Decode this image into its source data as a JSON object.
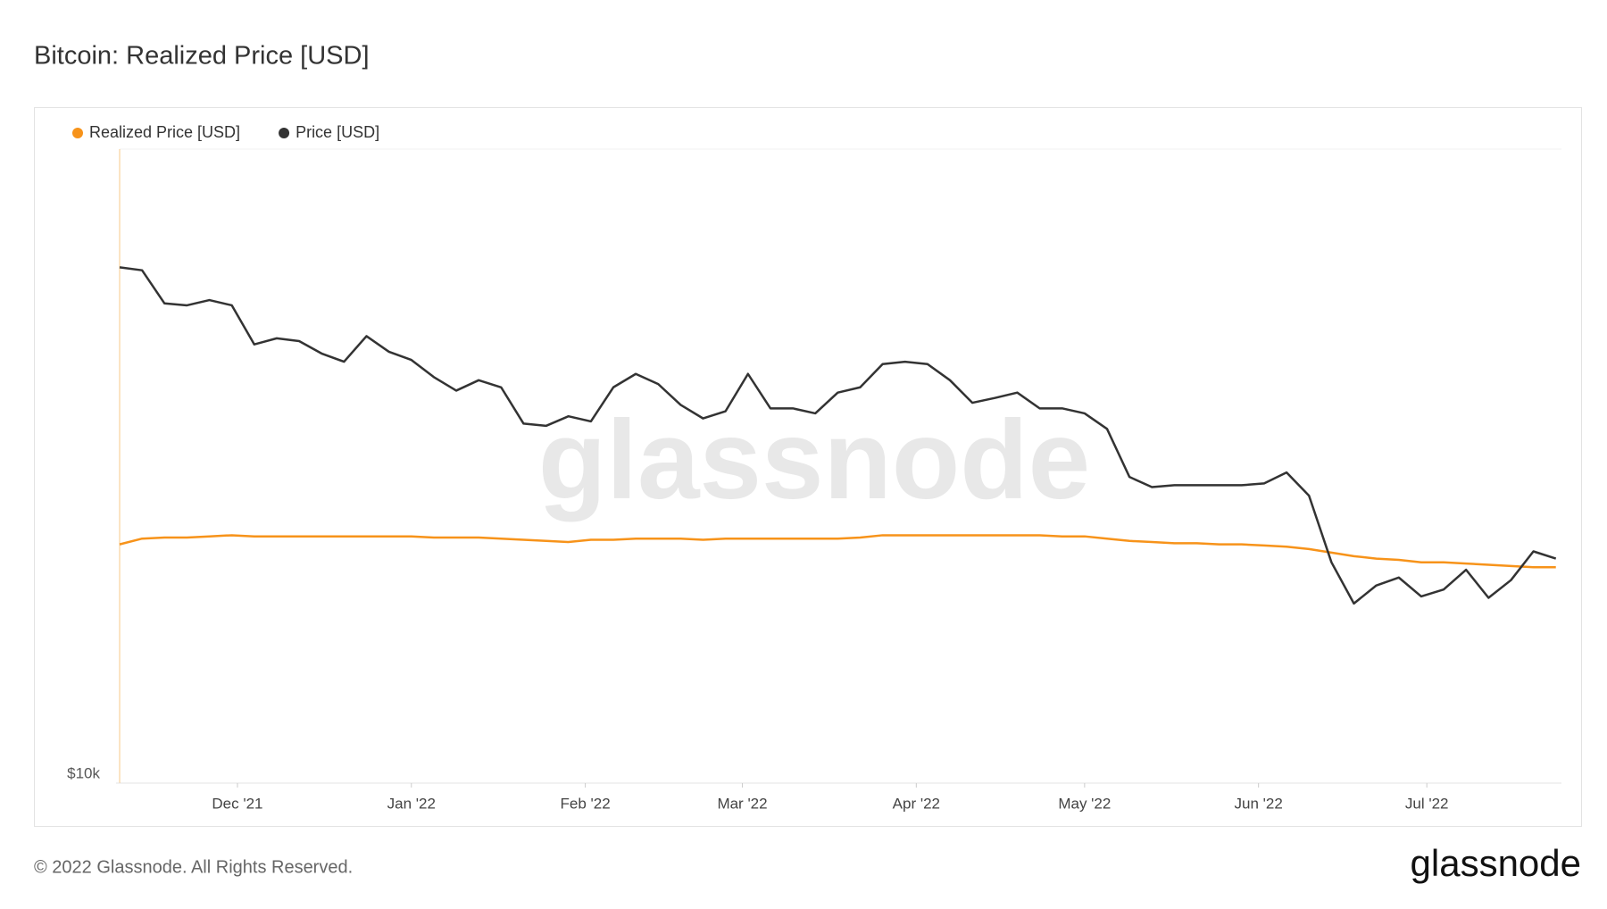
{
  "chart_data": {
    "type": "line",
    "title": "Bitcoin: Realized Price [USD]",
    "watermark": "glassnode",
    "footer": "© 2022 Glassnode. All Rights Reserved.",
    "logo": "glassnode",
    "x": [
      0,
      4,
      8,
      12,
      16,
      20,
      24,
      28,
      32,
      36,
      40,
      44,
      48,
      52,
      56,
      60,
      64,
      68,
      72,
      76,
      80,
      84,
      88,
      92,
      96,
      100,
      104,
      108,
      112,
      116,
      120,
      124,
      128,
      132,
      136,
      140,
      144,
      148,
      152,
      156,
      160,
      164,
      168,
      172,
      176,
      180,
      184,
      188,
      192,
      196,
      200,
      204,
      208,
      212,
      216,
      220,
      224,
      228,
      232,
      236,
      240,
      244,
      248,
      252,
      256
    ],
    "xlim": [
      0,
      257
    ],
    "xticks": [
      {
        "value": 21,
        "label": "Dec '21"
      },
      {
        "value": 52,
        "label": "Jan '22"
      },
      {
        "value": 83,
        "label": "Feb '22"
      },
      {
        "value": 111,
        "label": "Mar '22"
      },
      {
        "value": 142,
        "label": "Apr '22"
      },
      {
        "value": 172,
        "label": "May '22"
      },
      {
        "value": 203,
        "label": "Jun '22"
      },
      {
        "value": 233,
        "label": "Jul '22"
      }
    ],
    "ylim": [
      10000,
      100000
    ],
    "yticks": [
      {
        "value": 10000,
        "label": "$10k"
      }
    ],
    "log_scale": true,
    "series": [
      {
        "name": "Realized Price [USD]",
        "color": "#f7931a",
        "values": [
          23800,
          24300,
          24400,
          24400,
          24500,
          24600,
          24500,
          24500,
          24500,
          24500,
          24500,
          24500,
          24500,
          24500,
          24400,
          24400,
          24400,
          24300,
          24200,
          24100,
          24000,
          24200,
          24200,
          24300,
          24300,
          24300,
          24200,
          24300,
          24300,
          24300,
          24300,
          24300,
          24300,
          24400,
          24600,
          24600,
          24600,
          24600,
          24600,
          24600,
          24600,
          24600,
          24500,
          24500,
          24300,
          24100,
          24000,
          23900,
          23900,
          23800,
          23800,
          23700,
          23600,
          23400,
          23100,
          22800,
          22600,
          22500,
          22300,
          22300,
          22200,
          22100,
          22000,
          21900,
          21900
        ]
      },
      {
        "name": "Price [USD]",
        "color": "#333333",
        "values": [
          65100,
          64400,
          57100,
          56700,
          57800,
          56700,
          49200,
          50300,
          49800,
          47600,
          46200,
          50700,
          47900,
          46500,
          43700,
          41600,
          43200,
          42100,
          36900,
          36600,
          37900,
          37200,
          42100,
          44200,
          42600,
          39500,
          37600,
          38600,
          44200,
          39000,
          39000,
          38300,
          41300,
          42100,
          45800,
          46200,
          45800,
          43200,
          39800,
          40500,
          41300,
          39000,
          39000,
          38300,
          36200,
          30400,
          29300,
          29500,
          29500,
          29500,
          29500,
          29700,
          30900,
          28400,
          22300,
          19200,
          20500,
          21100,
          19700,
          20200,
          21700,
          19600,
          20900,
          23200,
          22600
        ]
      }
    ]
  }
}
